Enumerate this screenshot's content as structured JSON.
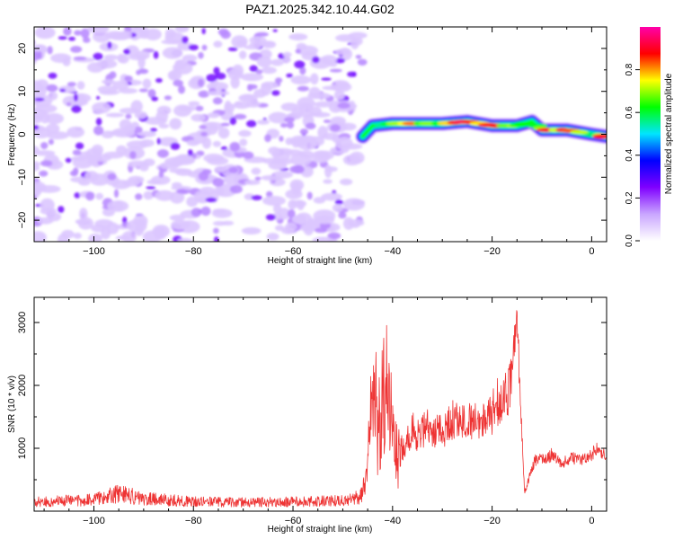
{
  "page": {
    "title": "PAZ1.2025.342.10.44.G02"
  },
  "chart_data": [
    {
      "type": "heatmap",
      "title": "PAZ1.2025.342.10.44.G02",
      "xlabel": "Height of straight line (km)",
      "ylabel": "Frequency (Hz)",
      "xlim": [
        -112,
        3
      ],
      "ylim": [
        -25,
        25
      ],
      "xticks": [
        -100,
        -80,
        -60,
        -40,
        -20,
        0
      ],
      "yticks": [
        -20,
        -10,
        0,
        10,
        20
      ],
      "colorbar": {
        "label": "Normalized spectral amplitude",
        "range": [
          0.0,
          1.0
        ],
        "ticks": [
          0.0,
          0.2,
          0.4,
          0.6,
          0.8
        ],
        "colormap": [
          "#ffffff",
          "#c9a5ff",
          "#7f00ff",
          "#0000ff",
          "#00e5ff",
          "#00ff00",
          "#ffff00",
          "#ff0000",
          "#ff00aa"
        ]
      },
      "noise_region": {
        "x_range": [
          -112,
          -46
        ],
        "freq_range": [
          -25,
          25
        ],
        "amplitude_range": [
          0.0,
          0.2
        ]
      },
      "signal_ridge": {
        "x": [
          -46,
          -44,
          -40,
          -35,
          -30,
          -25,
          -20,
          -15,
          -12,
          -10,
          -5,
          0,
          3
        ],
        "freq": [
          -0.5,
          2.0,
          2.5,
          2.5,
          2.5,
          3.0,
          2.0,
          2.0,
          3.0,
          1.0,
          1.0,
          0.0,
          -0.5
        ],
        "peak_amplitude": [
          0.3,
          0.4,
          0.6,
          0.75,
          0.7,
          0.85,
          0.8,
          0.75,
          0.6,
          0.8,
          0.85,
          0.5,
          0.95
        ]
      }
    },
    {
      "type": "line",
      "title": "",
      "xlabel": "Height of straight line (km)",
      "ylabel": "SNR (10 * v/v)",
      "xlim": [
        -112,
        3
      ],
      "ylim": [
        0,
        3400
      ],
      "xticks": [
        -100,
        -80,
        -60,
        -40,
        -20,
        0
      ],
      "yticks": [
        1000,
        2000,
        3000
      ],
      "series": [
        {
          "name": "SNR",
          "color": "#ee3333",
          "x": [
            -112,
            -100,
            -95,
            -90,
            -80,
            -70,
            -60,
            -50,
            -46,
            -45,
            -44,
            -43,
            -42,
            -41,
            -40,
            -39,
            -38,
            -37,
            -36,
            -35,
            -33,
            -30,
            -28,
            -25,
            -22,
            -20,
            -19,
            -18,
            -17,
            -16,
            -15.5,
            -15,
            -14.5,
            -14,
            -13.5,
            -13,
            -12,
            -11,
            -10,
            -8,
            -6,
            -4,
            -2,
            0,
            1,
            2,
            3
          ],
          "y": [
            150,
            180,
            280,
            200,
            150,
            140,
            150,
            170,
            260,
            700,
            2000,
            1400,
            1700,
            1900,
            1200,
            850,
            1000,
            1150,
            1300,
            1200,
            1350,
            1250,
            1450,
            1400,
            1500,
            1550,
            1750,
            1700,
            1850,
            2200,
            2700,
            3300,
            2100,
            1200,
            300,
            400,
            700,
            850,
            800,
            900,
            750,
            850,
            800,
            900,
            1000,
            950,
            900
          ]
        }
      ]
    }
  ]
}
